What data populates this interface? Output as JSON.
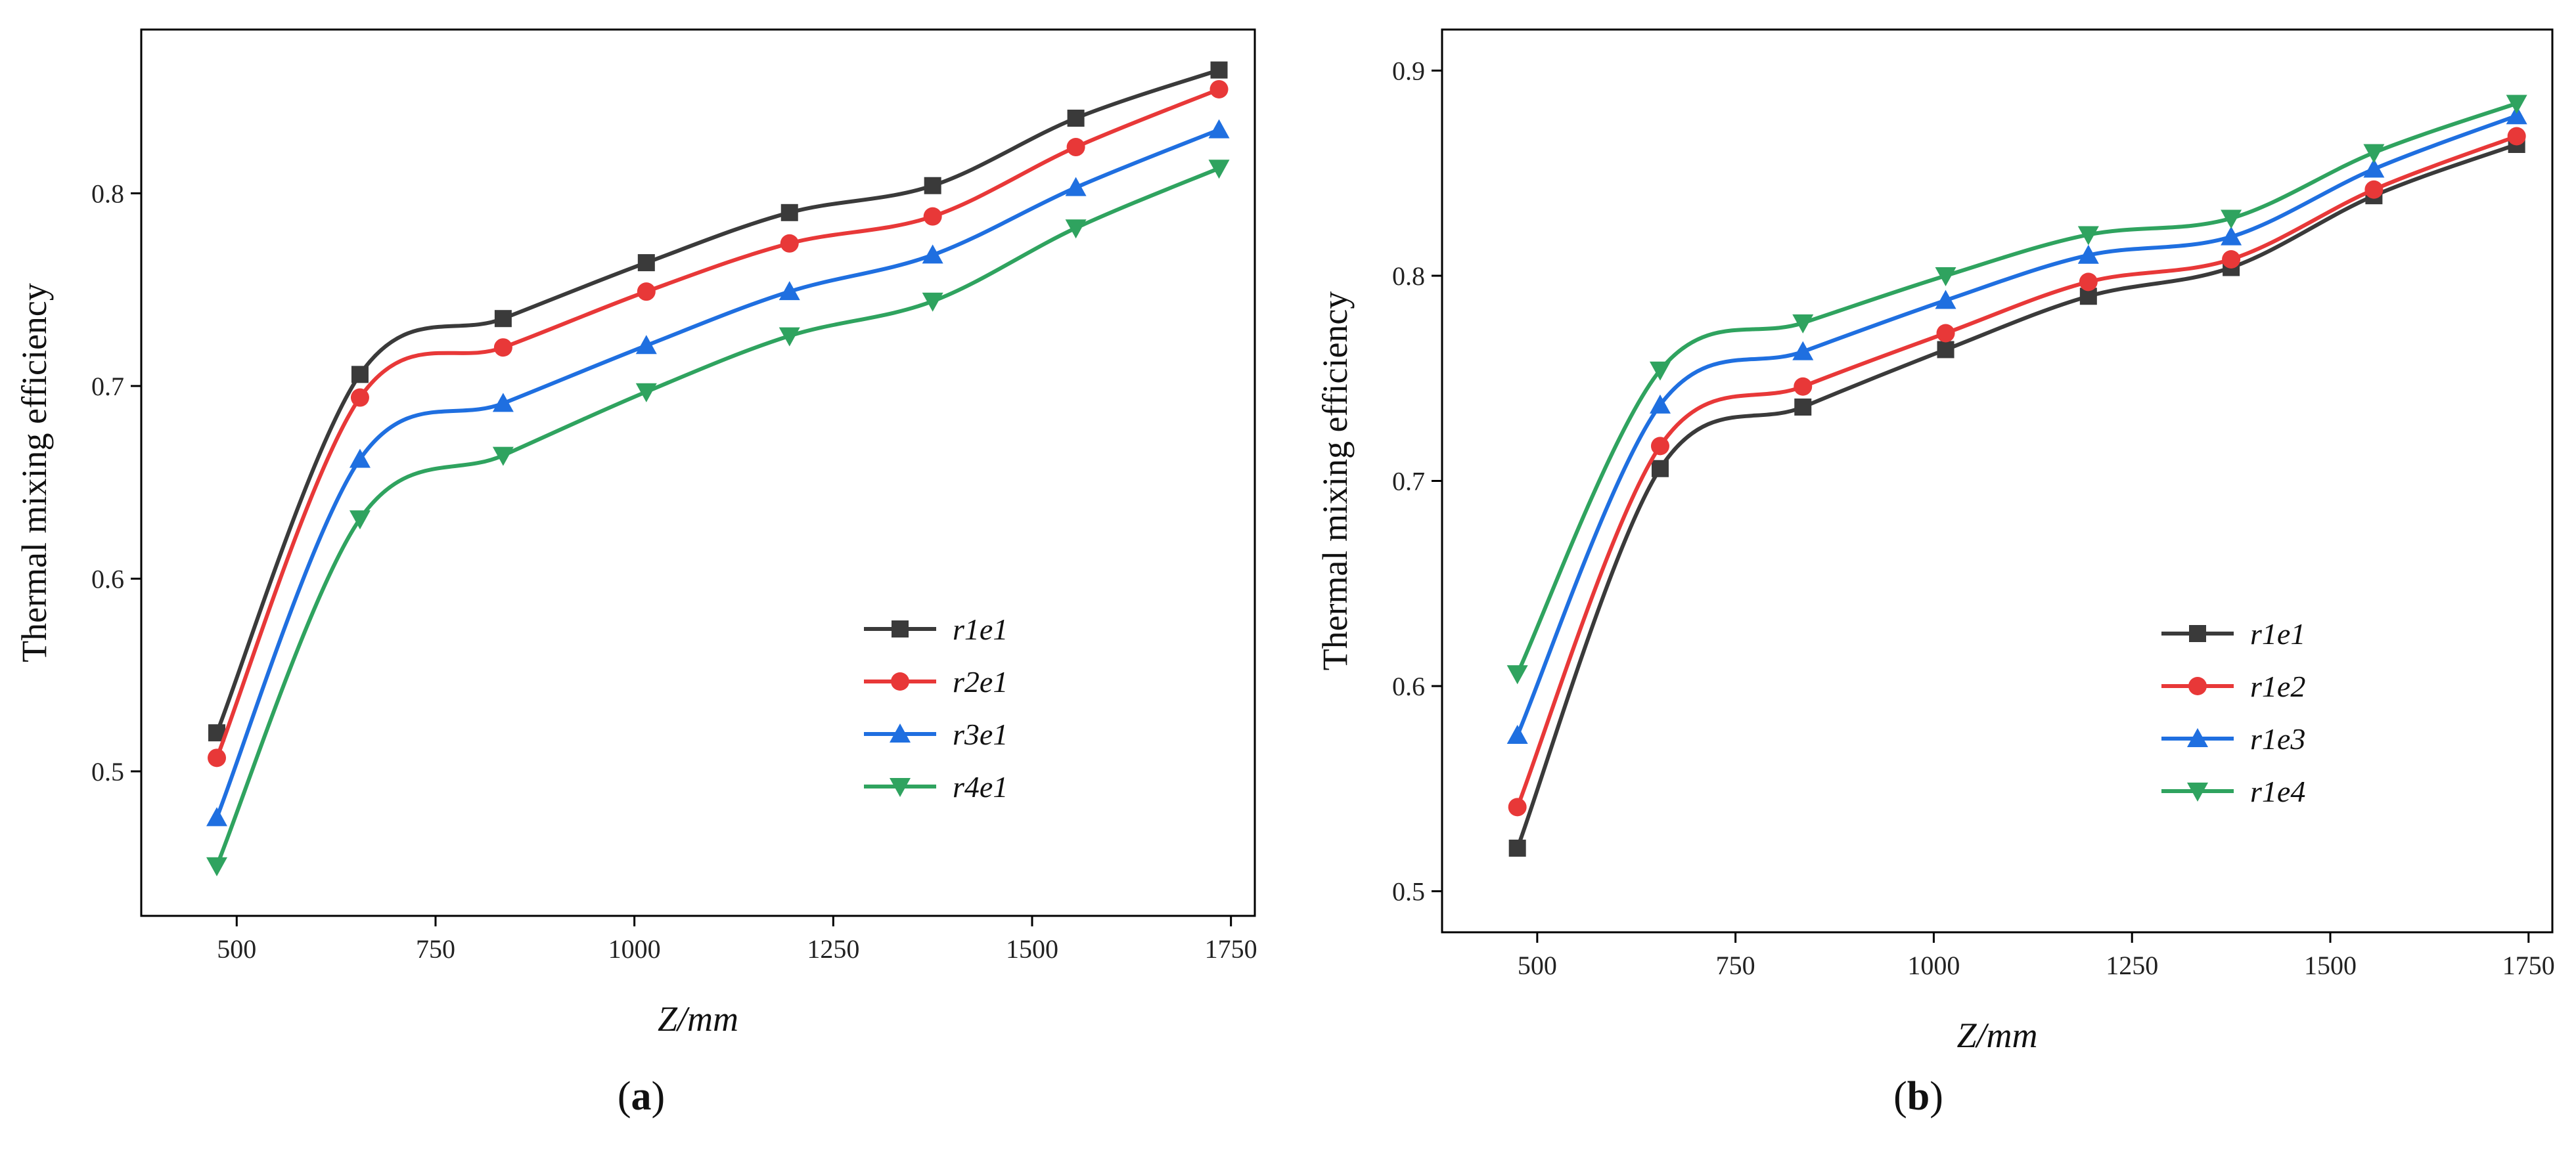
{
  "chart_data": [
    {
      "type": "line",
      "panel": "a",
      "caption_letter": "a",
      "xlabel": "Z/mm",
      "ylabel": "Thermal mixing efficiency",
      "xlim": [
        380,
        1780
      ],
      "ylim": [
        0.425,
        0.885
      ],
      "xticks": [
        500,
        750,
        1000,
        1250,
        1500,
        1750
      ],
      "yticks": [
        0.5,
        0.6,
        0.7,
        0.8
      ],
      "legend_position": "bottom-right",
      "x": [
        475,
        655,
        835,
        1015,
        1195,
        1375,
        1555,
        1735
      ],
      "series": [
        {
          "name": "r1e1",
          "color": "#3a3a3a",
          "marker": "square",
          "values": [
            0.52,
            0.706,
            0.735,
            0.764,
            0.79,
            0.804,
            0.839,
            0.864
          ]
        },
        {
          "name": "r2e1",
          "color": "#e83838",
          "marker": "circle",
          "values": [
            0.507,
            0.694,
            0.72,
            0.749,
            0.774,
            0.788,
            0.824,
            0.854
          ]
        },
        {
          "name": "r3e1",
          "color": "#1f6fe0",
          "marker": "triangle-up",
          "values": [
            0.476,
            0.662,
            0.691,
            0.721,
            0.749,
            0.768,
            0.803,
            0.833
          ]
        },
        {
          "name": "r4e1",
          "color": "#2fa35f",
          "marker": "triangle-down",
          "values": [
            0.451,
            0.631,
            0.664,
            0.697,
            0.726,
            0.744,
            0.782,
            0.813
          ]
        }
      ]
    },
    {
      "type": "line",
      "panel": "b",
      "caption_letter": "b",
      "xlabel": "Z/mm",
      "ylabel": "Thermal mixing efficiency",
      "xlim": [
        380,
        1780
      ],
      "ylim": [
        0.48,
        0.92
      ],
      "xticks": [
        500,
        750,
        1000,
        1250,
        1500,
        1750
      ],
      "yticks": [
        0.5,
        0.6,
        0.7,
        0.8,
        0.9
      ],
      "legend_position": "bottom-right",
      "x": [
        475,
        655,
        835,
        1015,
        1195,
        1375,
        1555,
        1735
      ],
      "series": [
        {
          "name": "r1e1",
          "color": "#3a3a3a",
          "marker": "square",
          "values": [
            0.521,
            0.706,
            0.736,
            0.764,
            0.79,
            0.804,
            0.839,
            0.864
          ]
        },
        {
          "name": "r1e2",
          "color": "#e83838",
          "marker": "circle",
          "values": [
            0.541,
            0.717,
            0.746,
            0.772,
            0.797,
            0.808,
            0.842,
            0.868
          ]
        },
        {
          "name": "r1e3",
          "color": "#1f6fe0",
          "marker": "triangle-up",
          "values": [
            0.576,
            0.737,
            0.763,
            0.788,
            0.81,
            0.819,
            0.852,
            0.878
          ]
        },
        {
          "name": "r1e4",
          "color": "#2fa35f",
          "marker": "triangle-down",
          "values": [
            0.606,
            0.754,
            0.777,
            0.8,
            0.82,
            0.828,
            0.86,
            0.884
          ]
        }
      ]
    }
  ]
}
